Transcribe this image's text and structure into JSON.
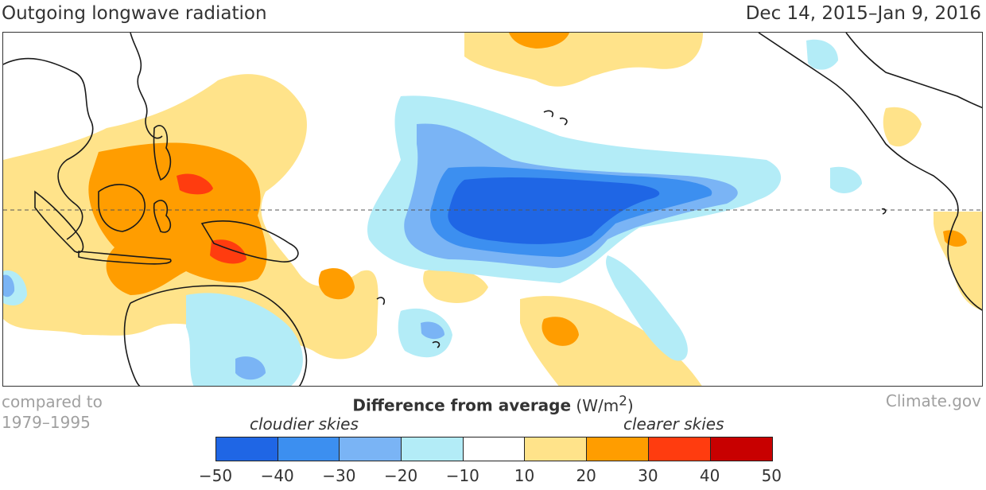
{
  "header": {
    "title": "Outgoing longwave radiation",
    "date_range": "Dec 14, 2015–Jan 9, 2016"
  },
  "footer": {
    "baseline_line1": "compared to",
    "baseline_line2": "1979–1995",
    "credit": "Climate.gov"
  },
  "legend": {
    "title_bold": "Difference from average",
    "units": "W/m",
    "units_sup": "2",
    "left_label": "cloudier skies",
    "right_label": "clearer skies",
    "ticks": [
      "−50",
      "−40",
      "−30",
      "−20",
      "−10",
      "10",
      "20",
      "30",
      "40",
      "50"
    ],
    "colors": [
      "#1f66e5",
      "#3c8ff0",
      "#7ab4f5",
      "#b3ecf7",
      "#ffffff",
      "#ffe38a",
      "#ff9d00",
      "#ff3c0f",
      "#c80000"
    ]
  },
  "map": {
    "equator_style": "dashed"
  }
}
